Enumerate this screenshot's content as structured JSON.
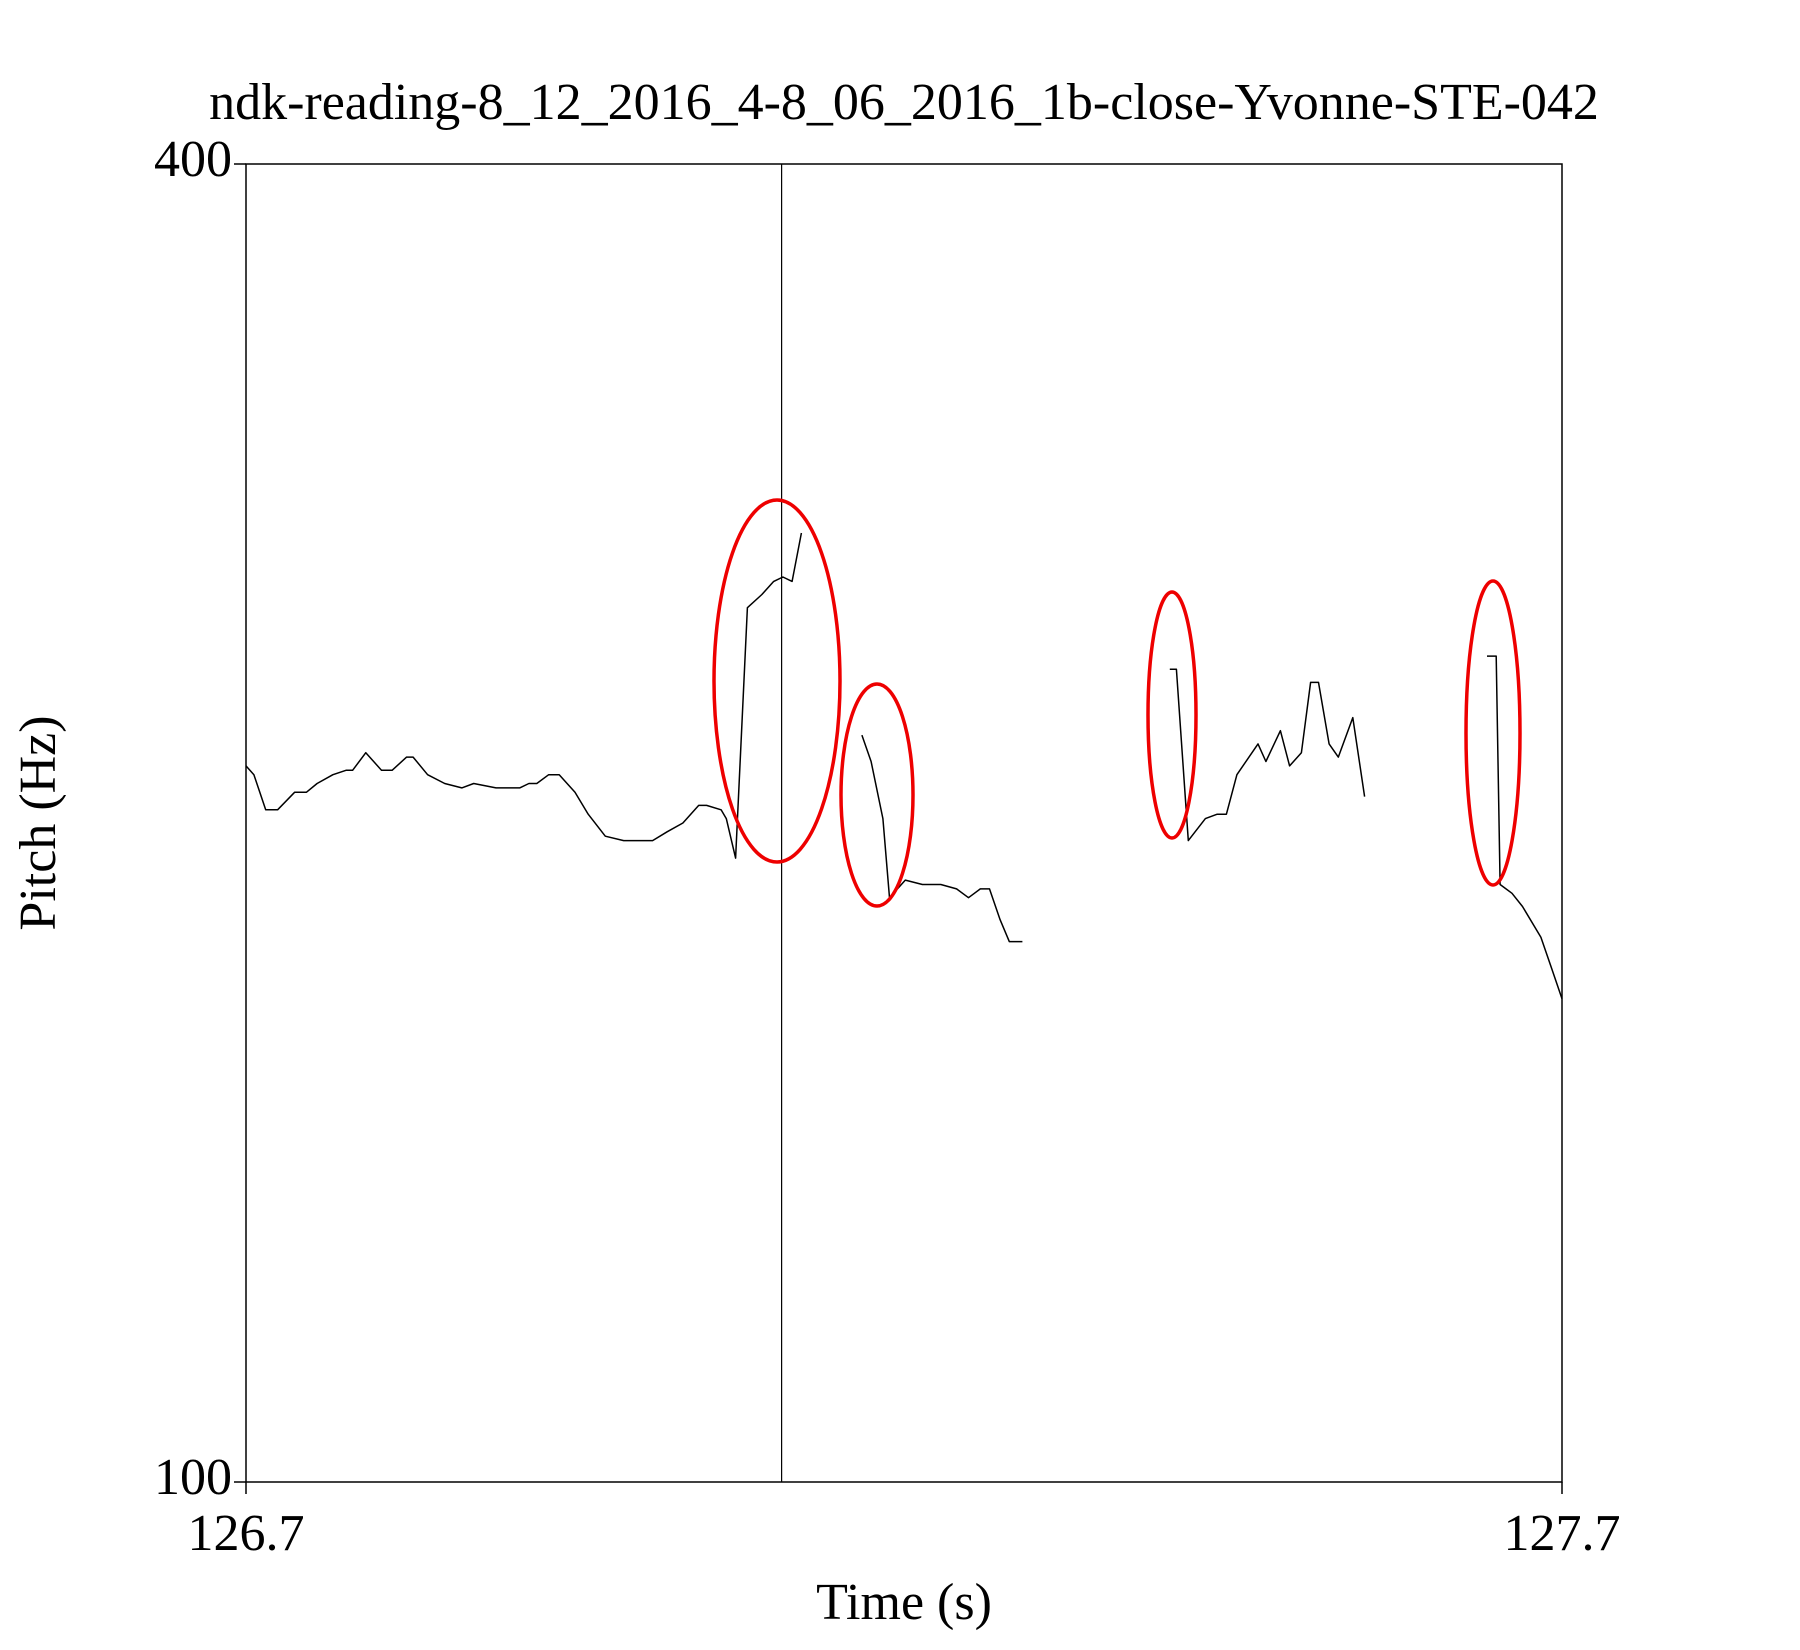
{
  "chart_data": {
    "type": "line",
    "title": "ndk-reading-8_12_2016_4-8_06_2016_1b-close-Yvonne-STE-042",
    "x_label": "Time (s)",
    "y_label": "Pitch (Hz)",
    "xlim": [
      126.7,
      127.7
    ],
    "ylim": [
      100,
      400
    ],
    "xticks": [
      126.7,
      127.7
    ],
    "yticks": [
      100,
      400
    ],
    "cursor_x": 127.107,
    "series": [
      {
        "name": "Pitch",
        "color": "#000000",
        "x": [
          126.7,
          126.706,
          126.715,
          126.724,
          126.737,
          126.746,
          126.754,
          126.766,
          126.776,
          126.781,
          126.791,
          126.803,
          126.811,
          126.822,
          126.827,
          126.838,
          126.851,
          126.864,
          126.873,
          126.89,
          126.908,
          126.915,
          126.921,
          126.93,
          126.938,
          126.95,
          126.96,
          126.973,
          126.987,
          127.0,
          127.009,
          127.02,
          127.032,
          127.044,
          127.05,
          127.061,
          127.065,
          127.072,
          127.081,
          127.092,
          127.101,
          127.108,
          127.115,
          127.122,
          null,
          127.168,
          127.175,
          127.184,
          127.189,
          127.201,
          127.214,
          127.228,
          127.24,
          127.249,
          127.258,
          127.265,
          127.273,
          127.28,
          127.29,
          null,
          127.402,
          127.407,
          127.416,
          127.429,
          127.438,
          127.445,
          127.453,
          127.469,
          127.475,
          127.486,
          127.493,
          127.502,
          127.509,
          127.515,
          127.523,
          127.53,
          127.541,
          127.55,
          null,
          127.643,
          127.65,
          127.653,
          127.662,
          127.67,
          127.684,
          127.692,
          127.7
        ],
        "values": [
          263,
          261,
          253,
          253,
          257,
          257,
          259,
          261,
          262,
          262,
          266,
          262,
          262,
          265,
          265,
          261,
          259,
          258,
          259,
          258,
          258,
          259,
          259,
          261,
          261,
          257,
          252,
          247,
          246,
          246,
          246,
          248,
          250,
          254,
          254,
          253,
          251,
          242,
          299,
          302,
          305,
          306,
          305,
          316,
          null,
          270,
          264,
          251,
          233,
          237,
          236,
          236,
          235,
          233,
          235,
          235,
          228,
          223,
          223,
          null,
          285,
          285,
          246,
          251,
          252,
          252,
          261,
          268,
          264,
          271,
          263,
          266,
          282,
          282,
          268,
          265,
          274,
          256,
          null,
          288,
          288,
          236,
          234,
          231,
          224,
          217,
          210
        ]
      }
    ]
  }
}
